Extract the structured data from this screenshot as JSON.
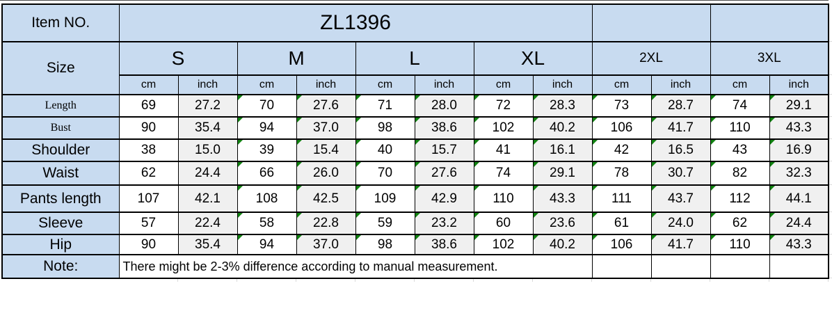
{
  "chart_data": {
    "type": "table",
    "title": "ZL1396",
    "item_no_label": "Item NO.",
    "item_no_value": "ZL1396",
    "size_label": "Size",
    "sizes": [
      "S",
      "M",
      "L",
      "XL",
      "2XL",
      "3XL"
    ],
    "units": [
      "cm",
      "inch"
    ],
    "columns": [
      "S cm",
      "S inch",
      "M cm",
      "M inch",
      "L cm",
      "L inch",
      "XL cm",
      "XL inch",
      "2XL cm",
      "2XL inch",
      "3XL cm",
      "3XL inch"
    ],
    "rows": [
      {
        "label": "Length",
        "values": [
          "69",
          "27.2",
          "70",
          "27.6",
          "71",
          "28.0",
          "72",
          "28.3",
          "73",
          "28.7",
          "74",
          "29.1"
        ]
      },
      {
        "label": "Bust",
        "values": [
          "90",
          "35.4",
          "94",
          "37.0",
          "98",
          "38.6",
          "102",
          "40.2",
          "106",
          "41.7",
          "110",
          "43.3"
        ]
      },
      {
        "label": "Shoulder",
        "values": [
          "38",
          "15.0",
          "39",
          "15.4",
          "40",
          "15.7",
          "41",
          "16.1",
          "42",
          "16.5",
          "43",
          "16.9"
        ]
      },
      {
        "label": "Waist",
        "values": [
          "62",
          "24.4",
          "66",
          "26.0",
          "70",
          "27.6",
          "74",
          "29.1",
          "78",
          "30.7",
          "82",
          "32.3"
        ]
      },
      {
        "label": "Pants length",
        "values": [
          "107",
          "42.1",
          "108",
          "42.5",
          "109",
          "42.9",
          "110",
          "43.3",
          "111",
          "43.7",
          "112",
          "44.1"
        ]
      },
      {
        "label": "Sleeve",
        "values": [
          "57",
          "22.4",
          "58",
          "22.8",
          "59",
          "23.2",
          "60",
          "23.6",
          "61",
          "24.0",
          "62",
          "24.4"
        ]
      },
      {
        "label": "Hip",
        "values": [
          "90",
          "35.4",
          "94",
          "37.0",
          "98",
          "38.6",
          "102",
          "40.2",
          "106",
          "41.7",
          "110",
          "43.3"
        ]
      }
    ],
    "note_label": "Note:",
    "note_text": "There might be 2-3% difference according to manual measurement."
  },
  "markers": {
    "flag_icon": "excel-green-corner-triangle",
    "triangle_value_columns": [
      2,
      3,
      4,
      5,
      6,
      7,
      8,
      9,
      10,
      11
    ]
  },
  "style": {
    "header_blue": "#C8DBF0",
    "inch_gray": "#F0F0F0",
    "marker_green": "#118211",
    "border_black": "#000000",
    "gridline_gray": "#D9D9D9",
    "serif_label_rows": [
      0,
      1
    ]
  }
}
